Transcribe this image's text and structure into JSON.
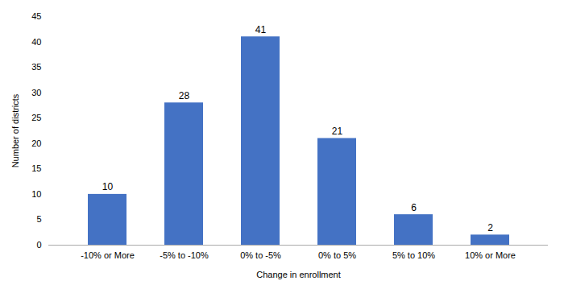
{
  "chart_data": {
    "type": "bar",
    "categories": [
      "-10% or More",
      "-5% to -10%",
      "0% to -5%",
      "0% to 5%",
      "5% to 10%",
      "10% or More"
    ],
    "values": [
      10,
      28,
      41,
      21,
      6,
      2
    ],
    "color": "#4472C4",
    "xlabel": "Change in enrollment",
    "ylabel": "Number of districts",
    "ylim": [
      0,
      45
    ],
    "yticks": [
      0,
      5,
      10,
      15,
      20,
      25,
      30,
      35,
      40,
      45
    ],
    "grid": false,
    "data_labels": true
  }
}
